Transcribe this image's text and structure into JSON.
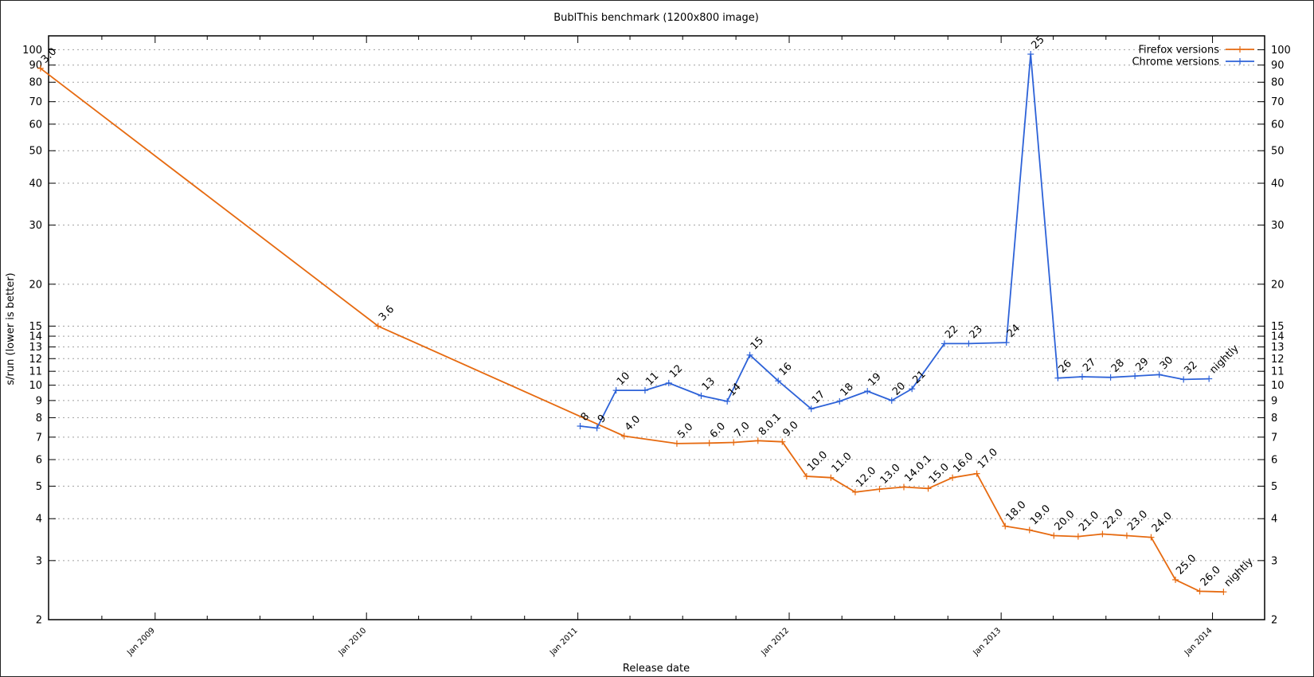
{
  "chart_data": {
    "type": "line",
    "title": "BublThis benchmark (1200x800 image)",
    "xlabel": "Release date",
    "ylabel": "s/run (lower is better)",
    "y_scale": "log",
    "ylim": [
      2,
      110
    ],
    "xlim": [
      "2008-07-01",
      "2014-04-01"
    ],
    "y_ticks": [
      2,
      3,
      4,
      5,
      6,
      7,
      8,
      9,
      10,
      11,
      12,
      13,
      14,
      15,
      20,
      30,
      40,
      50,
      60,
      70,
      80,
      90,
      100
    ],
    "x_ticks": [
      "Jan 2009",
      "Jan 2010",
      "Jan 2011",
      "Jan 2012",
      "Jan 2013",
      "Jan 2014"
    ],
    "grid": "horizontal dotted",
    "legend_position": "top-right",
    "series": [
      {
        "name": "Firefox versions",
        "color": "#e66a10",
        "points": [
          {
            "x": "2008-06-17",
            "y": 88,
            "label": "3.0"
          },
          {
            "x": "2010-01-21",
            "y": 15,
            "label": "3.6"
          },
          {
            "x": "2011-03-22",
            "y": 7.05,
            "label": "4.0"
          },
          {
            "x": "2011-06-21",
            "y": 6.7,
            "label": "5.0"
          },
          {
            "x": "2011-08-16",
            "y": 6.72,
            "label": "6.0"
          },
          {
            "x": "2011-09-27",
            "y": 6.75,
            "label": "7.0"
          },
          {
            "x": "2011-11-08",
            "y": 6.83,
            "label": "8.0.1"
          },
          {
            "x": "2011-12-20",
            "y": 6.78,
            "label": "9.0"
          },
          {
            "x": "2012-01-31",
            "y": 5.35,
            "label": "10.0"
          },
          {
            "x": "2012-03-13",
            "y": 5.3,
            "label": "11.0"
          },
          {
            "x": "2012-04-24",
            "y": 4.8,
            "label": "12.0"
          },
          {
            "x": "2012-06-05",
            "y": 4.9,
            "label": "13.0"
          },
          {
            "x": "2012-07-17",
            "y": 4.97,
            "label": "14.0.1"
          },
          {
            "x": "2012-08-28",
            "y": 4.92,
            "label": "15.0"
          },
          {
            "x": "2012-10-09",
            "y": 5.3,
            "label": "16.0"
          },
          {
            "x": "2012-11-20",
            "y": 5.45,
            "label": "17.0"
          },
          {
            "x": "2013-01-08",
            "y": 3.8,
            "label": "18.0"
          },
          {
            "x": "2013-02-19",
            "y": 3.7,
            "label": "19.0"
          },
          {
            "x": "2013-04-02",
            "y": 3.56,
            "label": "20.0"
          },
          {
            "x": "2013-05-14",
            "y": 3.54,
            "label": "21.0"
          },
          {
            "x": "2013-06-25",
            "y": 3.6,
            "label": "22.0"
          },
          {
            "x": "2013-08-06",
            "y": 3.56,
            "label": "23.0"
          },
          {
            "x": "2013-09-17",
            "y": 3.52,
            "label": "24.0"
          },
          {
            "x": "2013-10-29",
            "y": 2.63,
            "label": "25.0"
          },
          {
            "x": "2013-12-10",
            "y": 2.43,
            "label": "26.0"
          },
          {
            "x": "2014-01-20",
            "y": 2.42,
            "label": "nightly"
          }
        ]
      },
      {
        "name": "Chrome versions",
        "color": "#2d62d8",
        "points": [
          {
            "x": "2011-01-05",
            "y": 7.55,
            "label": "8"
          },
          {
            "x": "2011-02-03",
            "y": 7.45,
            "label": "9"
          },
          {
            "x": "2011-03-08",
            "y": 9.65,
            "label": "10"
          },
          {
            "x": "2011-04-27",
            "y": 9.65,
            "label": "11"
          },
          {
            "x": "2011-06-07",
            "y": 10.15,
            "label": "12"
          },
          {
            "x": "2011-08-02",
            "y": 9.3,
            "label": "13"
          },
          {
            "x": "2011-09-16",
            "y": 8.95,
            "label": "14"
          },
          {
            "x": "2011-10-25",
            "y": 12.3,
            "label": "15"
          },
          {
            "x": "2011-12-13",
            "y": 10.3,
            "label": "16"
          },
          {
            "x": "2012-02-08",
            "y": 8.5,
            "label": "17"
          },
          {
            "x": "2012-03-28",
            "y": 8.95,
            "label": "18"
          },
          {
            "x": "2012-05-15",
            "y": 9.6,
            "label": "19"
          },
          {
            "x": "2012-06-26",
            "y": 9.0,
            "label": "20"
          },
          {
            "x": "2012-07-31",
            "y": 9.75,
            "label": "21"
          },
          {
            "x": "2012-09-25",
            "y": 13.3,
            "label": "22"
          },
          {
            "x": "2012-11-06",
            "y": 13.3,
            "label": "23"
          },
          {
            "x": "2013-01-10",
            "y": 13.4,
            "label": "24"
          },
          {
            "x": "2013-02-21",
            "y": 97,
            "label": "25"
          },
          {
            "x": "2013-04-09",
            "y": 10.5,
            "label": "26"
          },
          {
            "x": "2013-05-21",
            "y": 10.6,
            "label": "27"
          },
          {
            "x": "2013-07-09",
            "y": 10.55,
            "label": "28"
          },
          {
            "x": "2013-08-20",
            "y": 10.65,
            "label": "29"
          },
          {
            "x": "2013-10-01",
            "y": 10.75,
            "label": "30"
          },
          {
            "x": "2013-11-12",
            "y": 10.4,
            "label": "32"
          },
          {
            "x": "2013-12-26",
            "y": 10.45,
            "label": "nightly"
          }
        ]
      }
    ]
  }
}
